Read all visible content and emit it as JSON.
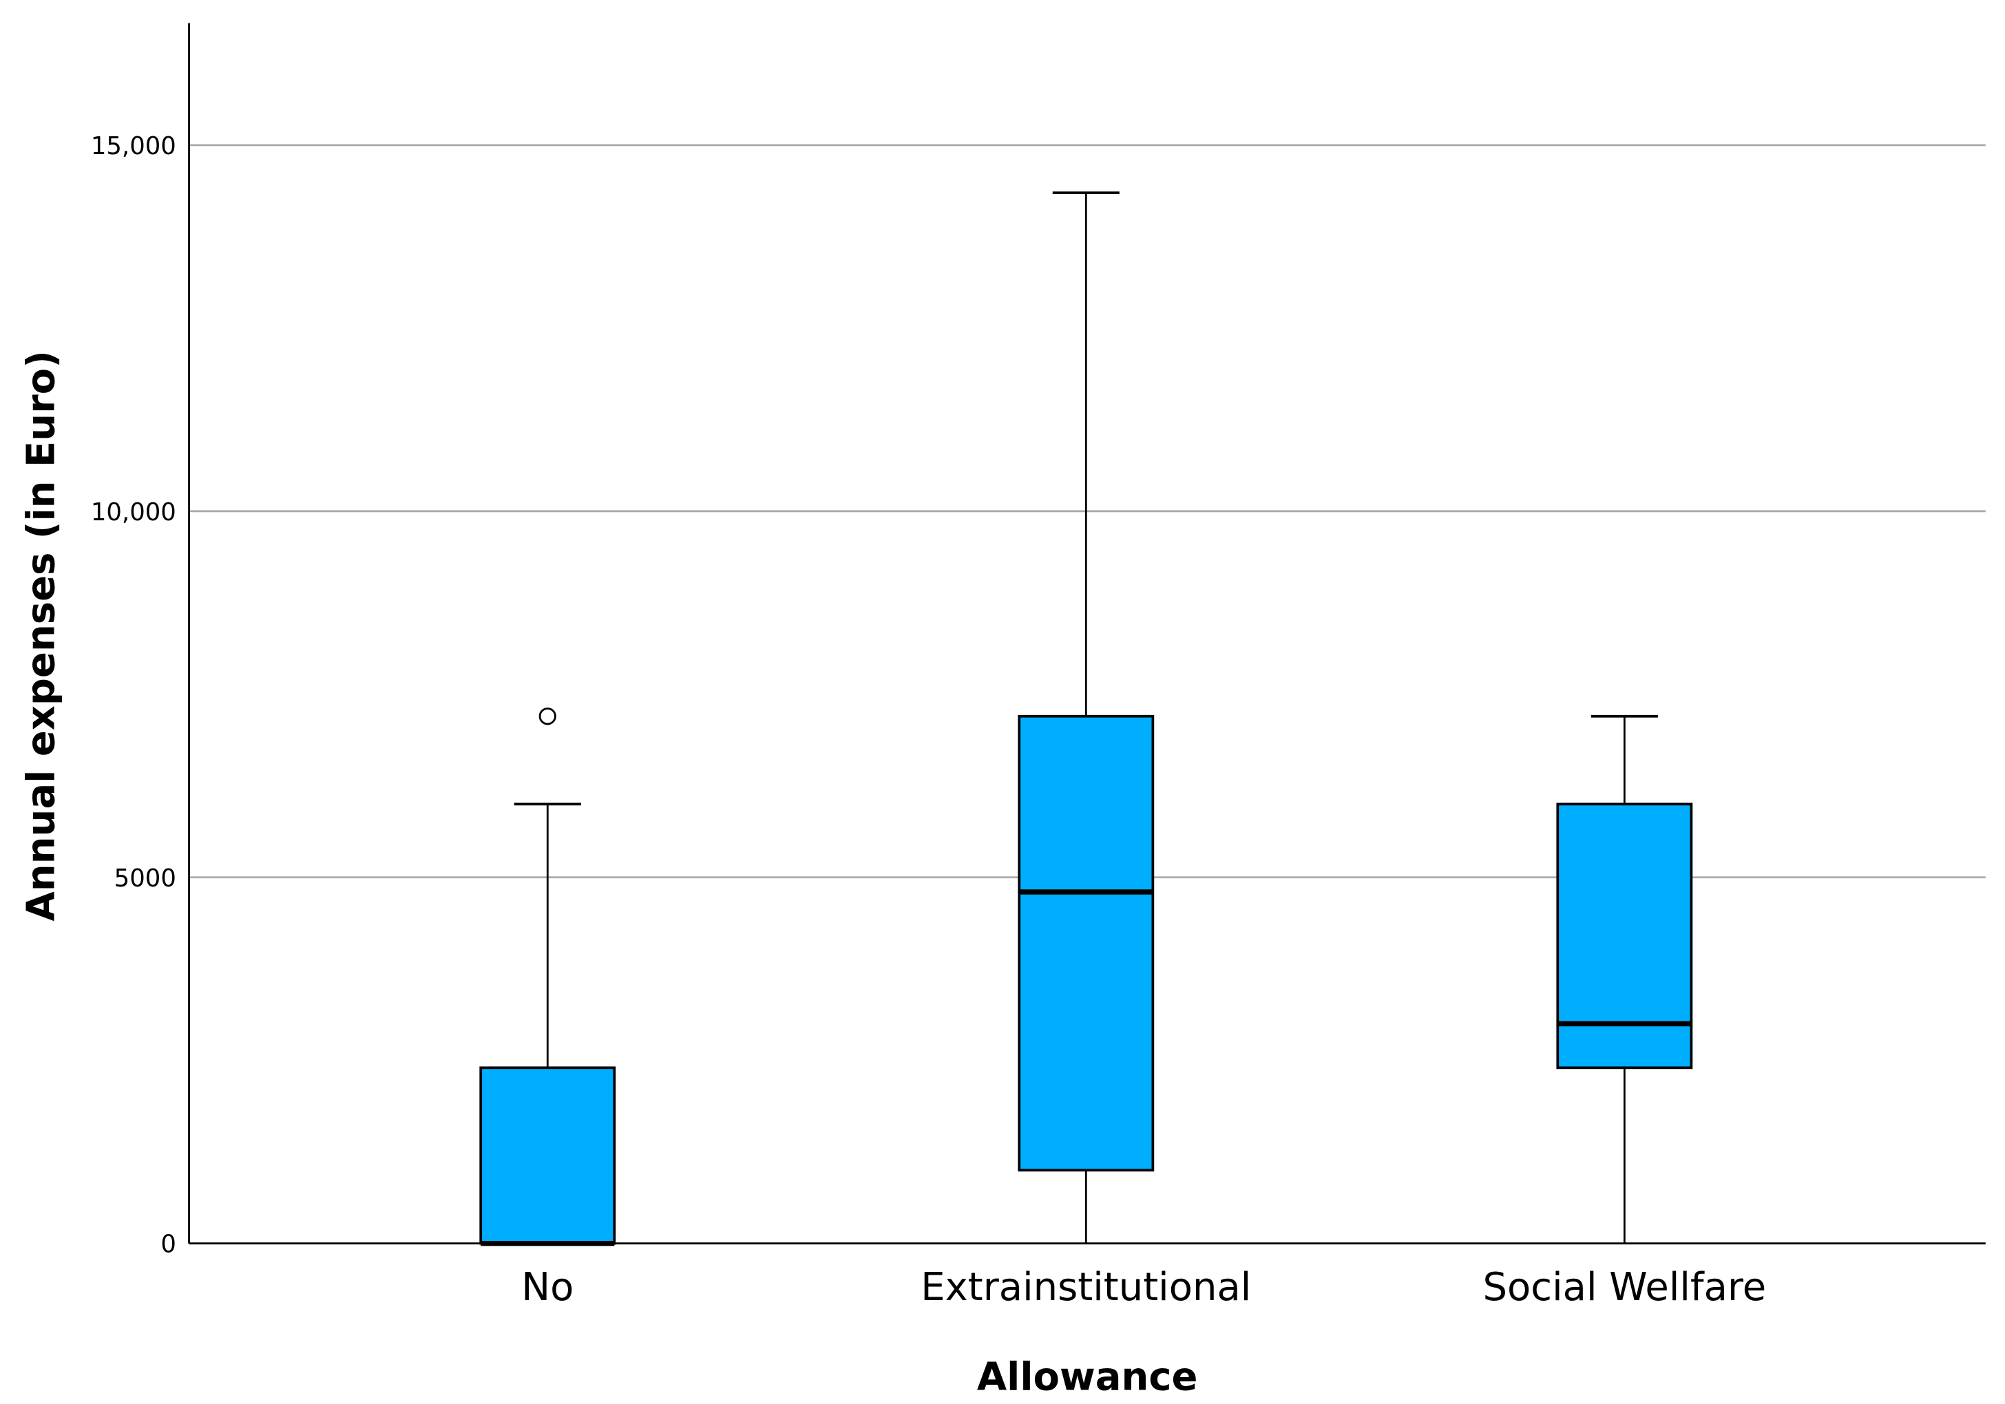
{
  "chart_data": {
    "type": "boxplot",
    "title": "",
    "xlabel": "Allowance",
    "ylabel": "Annual expenses (in Euro)",
    "ylim": [
      0,
      16700
    ],
    "yticks": [
      0,
      5000,
      10000,
      15000
    ],
    "ytick_labels": [
      "0",
      "5000",
      "10,000",
      "15,000"
    ],
    "grid": "horizontal",
    "box_color": "#00AEFF",
    "categories": [
      "No",
      "Extrainstitutional",
      "Social Wellfare"
    ],
    "boxes": [
      {
        "category": "No",
        "whisker_low": 0,
        "q1": 0,
        "median": 0,
        "q3": 2400,
        "whisker_high": 6000,
        "outliers": [
          7200
        ]
      },
      {
        "category": "Extrainstitutional",
        "whisker_low": 0,
        "q1": 1000,
        "median": 4800,
        "q3": 7200,
        "whisker_high": 14350,
        "outliers": []
      },
      {
        "category": "Social Wellfare",
        "whisker_low": 0,
        "q1": 2400,
        "median": 3000,
        "q3": 6000,
        "whisker_high": 7200,
        "outliers": []
      }
    ]
  }
}
